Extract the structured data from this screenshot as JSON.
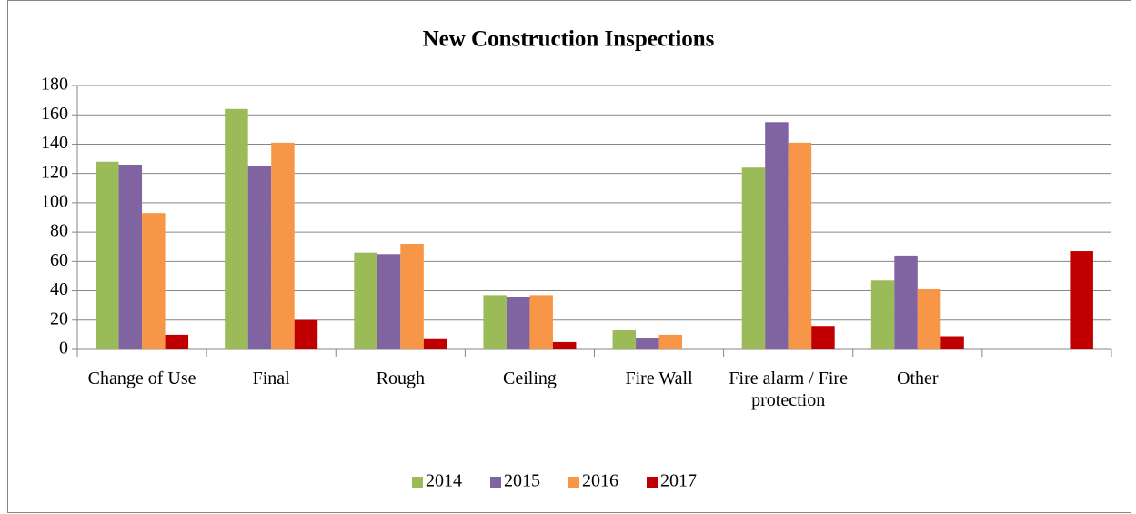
{
  "chart_data": {
    "type": "bar",
    "title": "New Construction Inspections",
    "categories": [
      "Change of Use",
      "Final",
      "Rough",
      "Ceiling",
      "Fire Wall",
      "Fire alarm / Fire protection",
      "Other",
      null
    ],
    "series": [
      {
        "name": "2014",
        "color": "#9bbb59",
        "values": [
          128,
          164,
          66,
          37,
          13,
          124,
          47,
          null
        ]
      },
      {
        "name": "2015",
        "color": "#8064a2",
        "values": [
          126,
          125,
          65,
          36,
          8,
          155,
          64,
          null
        ]
      },
      {
        "name": "2016",
        "color": "#f79646",
        "values": [
          93,
          141,
          72,
          37,
          10,
          141,
          41,
          null
        ]
      },
      {
        "name": "2017",
        "color": "#c00000",
        "values": [
          10,
          20,
          7,
          5,
          null,
          16,
          9,
          67
        ]
      }
    ],
    "ylim": [
      0,
      180
    ],
    "yticks": [
      0,
      20,
      40,
      60,
      80,
      100,
      120,
      140,
      160,
      180
    ],
    "grid": true,
    "legend": "bottom"
  }
}
